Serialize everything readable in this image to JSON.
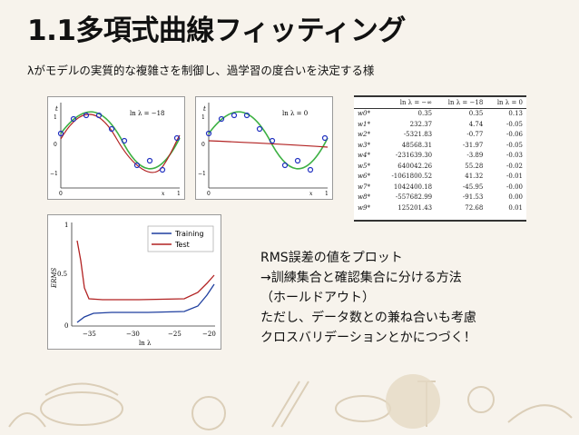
{
  "title": "1.1多項式曲線フィッティング",
  "subtitle": "λがモデルの実質的な複雑さを制御し、過学習の度合いを決定する様",
  "plot1": {
    "label": "ln λ = −18",
    "t": "t",
    "x": "x",
    "y_ticks": [
      "1",
      "0",
      "−1"
    ],
    "x_ticks": [
      "0",
      "1"
    ]
  },
  "plot2": {
    "label": "ln λ = 0",
    "t": "t",
    "x": "x",
    "y_ticks": [
      "1",
      "0",
      "−1"
    ],
    "x_ticks": [
      "0",
      "1"
    ]
  },
  "table": {
    "headers": [
      "",
      "ln λ = −∞",
      "ln λ = −18",
      "ln λ = 0"
    ],
    "rows": [
      [
        "w0*",
        "0.35",
        "0.35",
        "0.13"
      ],
      [
        "w1*",
        "232.37",
        "4.74",
        "-0.05"
      ],
      [
        "w2*",
        "-5321.83",
        "-0.77",
        "-0.06"
      ],
      [
        "w3*",
        "48568.31",
        "-31.97",
        "-0.05"
      ],
      [
        "w4*",
        "-231639.30",
        "-3.89",
        "-0.03"
      ],
      [
        "w5*",
        "640042.26",
        "55.28",
        "-0.02"
      ],
      [
        "w6*",
        "-1061800.52",
        "41.32",
        "-0.01"
      ],
      [
        "w7*",
        "1042400.18",
        "-45.95",
        "-0.00"
      ],
      [
        "w8*",
        "-557682.99",
        "-91.53",
        "0.00"
      ],
      [
        "w9*",
        "125201.43",
        "72.68",
        "0.01"
      ]
    ]
  },
  "erms": {
    "ylabel": "ERMS",
    "xlabel": "ln λ",
    "legend_training": "Training",
    "legend_test": "Test",
    "x_ticks": [
      "−35",
      "−30",
      "−25",
      "−20"
    ],
    "y_ticks": [
      "1",
      "0.5",
      "0"
    ]
  },
  "notes": {
    "line1": "RMS誤差の値をプロット",
    "line2": "→訓練集合と確認集合に分ける方法",
    "line3": "（ホールドアウト）",
    "line4": "ただし、データ数との兼ね合いも考慮",
    "line5": "クロスバリデーションとかにつづく！"
  },
  "colors": {
    "training": "#1f3f9f",
    "test": "#b22222",
    "true_curve": "#3cb043",
    "fit_curve": "#b22222",
    "points": "#2030c0"
  }
}
